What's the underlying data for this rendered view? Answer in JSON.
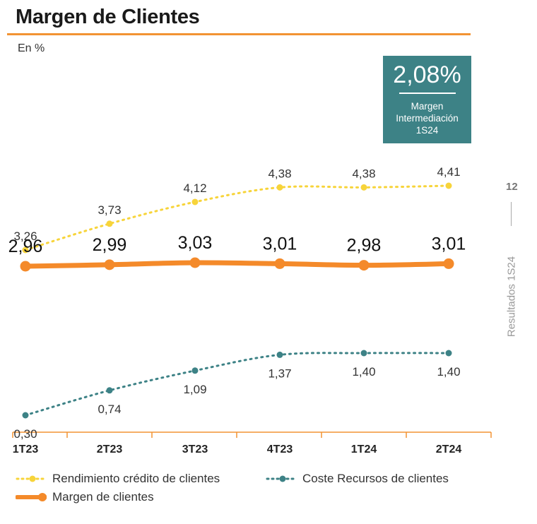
{
  "header": {
    "title": "Margen de Clientes",
    "unit": "En %"
  },
  "kpi": {
    "value": "2,08%",
    "label_line1": "Margen",
    "label_line2": "Intermediación",
    "label_line3": "1S24"
  },
  "side": {
    "page_number": "12",
    "text": "Resultados  1S24"
  },
  "colors": {
    "rendimiento": "#f7d43a",
    "coste": "#3d8286",
    "margen": "#f48a2a",
    "axis": "#f29333"
  },
  "chart_data": {
    "type": "line",
    "categories": [
      "1T23",
      "2T23",
      "3T23",
      "4T23",
      "1T24",
      "2T24"
    ],
    "ylabel": "En %",
    "series": [
      {
        "key": "rendimiento",
        "name": "Rendimiento crédito de clientes",
        "values": [
          3.26,
          3.73,
          4.12,
          4.38,
          4.38,
          4.41
        ],
        "labels": [
          "3,26",
          "3,73",
          "4,12",
          "4,38",
          "4,38",
          "4,41"
        ]
      },
      {
        "key": "margen",
        "name": "Margen de clientes",
        "values": [
          2.96,
          2.99,
          3.03,
          3.01,
          2.98,
          3.01
        ],
        "labels": [
          "2,96",
          "2,99",
          "3,03",
          "3,01",
          "2,98",
          "3,01"
        ]
      },
      {
        "key": "coste",
        "name": "Coste Recursos de clientes",
        "values": [
          0.3,
          0.74,
          1.09,
          1.37,
          1.4,
          1.4
        ],
        "labels": [
          "0,30",
          "0,74",
          "1,09",
          "1,37",
          "1,40",
          "1,40"
        ]
      }
    ],
    "legend_position": "bottom"
  }
}
